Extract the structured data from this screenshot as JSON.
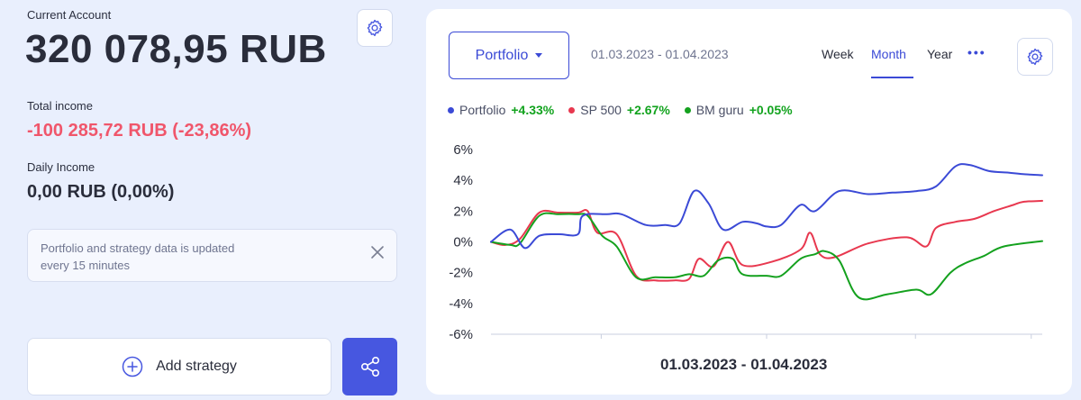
{
  "account": {
    "current_label": "Current Account",
    "current_value": "320 078,95 RUB",
    "total_income_label": "Total income",
    "total_income_value": "-100 285,72 RUB (-23,86%)",
    "daily_income_label": "Daily Income",
    "daily_income_value": "0,00 RUB (0,00%)",
    "settings_icon": "gear-icon"
  },
  "notice": {
    "text_line1": "Portfolio and strategy data is updated",
    "text_line2": "every 15 minutes",
    "close_icon": "close-icon"
  },
  "actions": {
    "add_strategy_label": "Add strategy",
    "add_icon": "plus-circle-icon",
    "share_icon": "share-icon"
  },
  "panel": {
    "dropdown_label": "Portfolio",
    "date_range": "01.03.2023 - 01.04.2023",
    "periods": [
      "Week",
      "Month",
      "Year"
    ],
    "active_period": "Month",
    "more_label": "•••",
    "x_range_label": "01.03.2023 - 01.04.2023"
  },
  "colors": {
    "accent": "#3b4ad6",
    "portfolio": "#3b4ad6",
    "sp500": "#e8384f",
    "bmguru": "#14a11e",
    "negative": "#f0566b",
    "positive": "#12a31e"
  },
  "chart_data": {
    "type": "line",
    "ylim": [
      -6,
      6
    ],
    "yticks": [
      "6%",
      "4%",
      "2%",
      "0%",
      "-2%",
      "-4%",
      "-6%"
    ],
    "x_range": [
      "01.03.2023",
      "01.04.2023"
    ],
    "grid": false,
    "legend": "top-left",
    "series": [
      {
        "name": "Portfolio",
        "change": "+4.33%",
        "color": "#3b4ad6",
        "x": [
          0,
          2,
          3.5,
          5,
          7,
          9,
          9.5,
          12,
          13.5,
          16,
          18,
          19.5,
          21,
          22.5,
          24,
          26,
          27.5,
          28.5,
          30,
          32,
          33.5,
          36,
          39,
          41.5,
          44,
          46,
          48,
          49.5,
          51.5,
          53.5,
          55,
          57
        ],
        "values": [
          0,
          0.8,
          -0.4,
          0.4,
          0.5,
          0.5,
          1.7,
          1.8,
          1.8,
          1.1,
          1.1,
          1.2,
          3.3,
          2.5,
          0.8,
          1.3,
          1.2,
          1.0,
          1.1,
          2.4,
          2.0,
          3.3,
          3.1,
          3.2,
          3.3,
          3.6,
          4.9,
          5.0,
          4.6,
          4.5,
          4.4,
          4.33
        ]
      },
      {
        "name": "SP 500",
        "change": "+2.67%",
        "color": "#e8384f",
        "x": [
          0,
          1.5,
          3,
          5,
          7,
          9,
          10,
          11,
          13,
          15,
          17,
          19,
          20.5,
          21.5,
          23,
          24.5,
          26,
          29,
          32,
          33,
          34,
          35.5,
          39,
          43,
          45,
          46,
          48,
          50,
          52,
          54,
          55,
          57
        ],
        "values": [
          0,
          -0.2,
          0.2,
          1.9,
          1.9,
          1.9,
          2.0,
          0.6,
          0.5,
          -2.2,
          -2.5,
          -2.5,
          -2.4,
          -1.1,
          -1.6,
          0.0,
          -1.5,
          -1.3,
          -0.5,
          0.6,
          -0.8,
          -1.0,
          -0.1,
          0.3,
          -0.3,
          0.9,
          1.3,
          1.5,
          2.0,
          2.4,
          2.6,
          2.67
        ]
      },
      {
        "name": "BM guru",
        "change": "+0.05%",
        "color": "#14a11e",
        "x": [
          0,
          2,
          3,
          5,
          7,
          9,
          10,
          11.5,
          13,
          15,
          17,
          19,
          20.5,
          22,
          23.5,
          25,
          26,
          28.5,
          30,
          32,
          33.5,
          34.5,
          36,
          38,
          41,
          44,
          45.5,
          47.5,
          49,
          51,
          53,
          57
        ],
        "values": [
          0,
          -0.2,
          -0.1,
          1.7,
          1.8,
          1.8,
          1.7,
          0.4,
          -0.3,
          -2.3,
          -2.3,
          -2.3,
          -2.1,
          -2.2,
          -1.2,
          -1.1,
          -2.1,
          -2.2,
          -2.2,
          -1.1,
          -0.8,
          -0.6,
          -1.2,
          -3.6,
          -3.4,
          -3.1,
          -3.4,
          -2.0,
          -1.4,
          -0.9,
          -0.3,
          0.05
        ]
      }
    ]
  }
}
